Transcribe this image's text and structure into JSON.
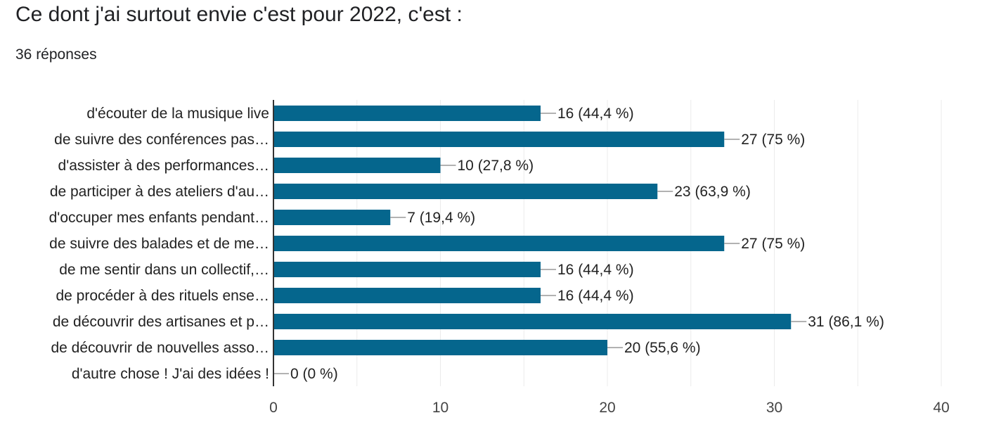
{
  "question": {
    "title": "Ce dont j'ai surtout envie c'est pour 2022, c'est :",
    "response_count": "36 réponses"
  },
  "colors": {
    "bar": "#05668d",
    "grid": "#ebebeb",
    "axis": "#333333",
    "leader": "#999999",
    "text": "#222222"
  },
  "chart_data": {
    "type": "bar",
    "orientation": "horizontal",
    "title": "",
    "xlabel": "",
    "ylabel": "",
    "xlim": [
      0,
      40
    ],
    "x_ticks": [
      0,
      10,
      20,
      30,
      40
    ],
    "grid": true,
    "categories": [
      "d'écouter de la musique live",
      "de suivre des conférences pas…",
      "d'assister à des performances…",
      "de participer à des ateliers d'au…",
      "d'occuper mes enfants pendant…",
      "de suivre des balades et de me…",
      "de me sentir dans un collectif,…",
      "de procéder à des rituels ense…",
      "de découvrir des artisanes et p…",
      "de découvrir de nouvelles asso…",
      "d'autre chose ! J'ai des idées !"
    ],
    "values": [
      16,
      27,
      10,
      23,
      7,
      27,
      16,
      16,
      31,
      20,
      0
    ],
    "value_labels": [
      "16 (44,4 %)",
      "27 (75 %)",
      "10 (27,8 %)",
      "23 (63,9 %)",
      "7 (19,4 %)",
      "27 (75 %)",
      "16 (44,4 %)",
      "16 (44,4 %)",
      "31 (86,1 %)",
      "20 (55,6 %)",
      "0 (0 %)"
    ]
  }
}
